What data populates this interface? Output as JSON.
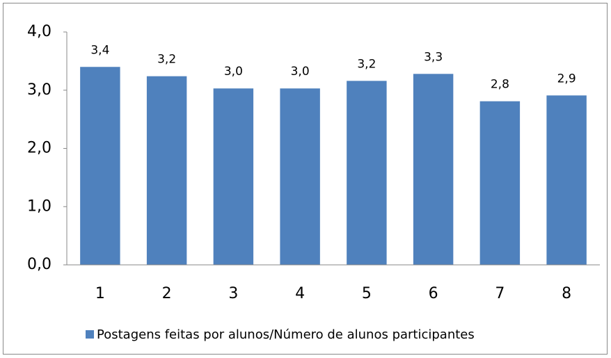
{
  "chart_data": {
    "type": "bar",
    "categories": [
      "1",
      "2",
      "3",
      "4",
      "5",
      "6",
      "7",
      "8"
    ],
    "series": [
      {
        "name": "Postagens feitas por alunos/Número de alunos participantes",
        "color": "#4f81bd",
        "values": [
          3.4,
          3.24,
          3.03,
          3.03,
          3.16,
          3.28,
          2.81,
          2.91
        ],
        "value_labels": [
          "3,4",
          "3,2",
          "3,0",
          "3,0",
          "3,2",
          "3,3",
          "2,8",
          "2,9"
        ]
      }
    ],
    "ylim": [
      0,
      4
    ],
    "yticks": [
      {
        "value": 0,
        "label": "0,0"
      },
      {
        "value": 1,
        "label": "1,0"
      },
      {
        "value": 2,
        "label": "2,0"
      },
      {
        "value": 3,
        "label": "3,0"
      },
      {
        "value": 4,
        "label": "4,0"
      }
    ],
    "grid": false,
    "legend": "bottom"
  }
}
